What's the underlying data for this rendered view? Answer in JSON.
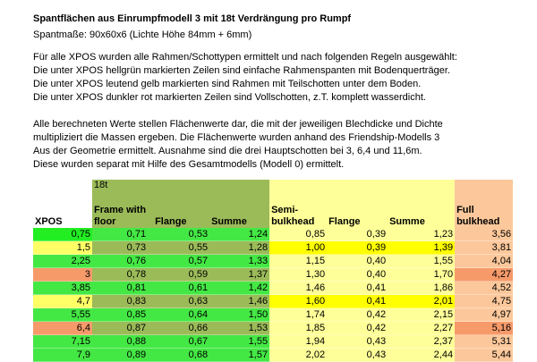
{
  "title": "Spantflächen aus Einrumpfmodell 3 mit 18t Verdrängung pro Rumpf",
  "subtitle": "Spantmaße: 90x60x6 (Lichte Höhe 84mm + 6mm)",
  "paragraph1": [
    "Für alle XPOS wurden alle Rahmen/Schottypen ermittelt und nach folgenden Regeln ausgewählt:",
    "Die unter XPOS hellgrün markierten Zeilen sind einfache Rahmenspanten mit Bodenquerträger.",
    "Die unter XPOS leutend gelb markierten sind Rahmen mit Teilschotten unter dem Boden.",
    "Die unter XPOS dunkler rot markierten Zeilen sind Vollschotten, z.T. komplett wasserdicht."
  ],
  "paragraph2": [
    "Alle berechneten Werte stellen Flächenwerte dar, die mit der jeweiligen Blechdicke und Dichte",
    "multipliziert die Massen ergeben. Die Flächenwerte wurden anhand des Friendship-Modells 3",
    "Aus der Geometrie ermittelt. Ausnahme sind die drei Hauptschotten bei 3, 6,4 und 11,6m.",
    "Diese wurden separat mit Hilfe des Gesamtmodells (Modell 0) ermittelt."
  ],
  "table": {
    "group_label": "18t",
    "headers": {
      "xpos": "XPOS",
      "frame1": "Frame with",
      "frame2": "floor",
      "flange1": "Flange",
      "summe1": "Summe",
      "semi1": "Semi-",
      "semi2": "bulkhead",
      "flange2": "Flange",
      "summe2": "Summe",
      "full1": "Full",
      "full2": "bulkhead"
    },
    "colors": {
      "green": "#44e844",
      "bright_green": "#22ee22",
      "olive": "#9bbb59",
      "yellow_light": "#ffff66",
      "salmon": "#f79a6a",
      "semi_bg": "#ffff99",
      "semi_highlight": "#ffff00",
      "full_bg": "#fcc89b",
      "full_highlight": "#f79a6a"
    },
    "rows": [
      {
        "type": "frame-first",
        "xpos": "0,75",
        "frame": "0,71",
        "flange1": "0,53",
        "summe1": "1,24",
        "semi": "0,85",
        "flange2": "0,39",
        "summe2": "1,23",
        "full": "3,56"
      },
      {
        "type": "partial",
        "xpos": "1,5",
        "frame": "0,73",
        "flange1": "0,55",
        "summe1": "1,28",
        "semi": "1,00",
        "flange2": "0,39",
        "summe2": "1,39",
        "full": "3,81"
      },
      {
        "type": "frame",
        "xpos": "2,25",
        "frame": "0,76",
        "flange1": "0,57",
        "summe1": "1,33",
        "semi": "1,15",
        "flange2": "0,40",
        "summe2": "1,55",
        "full": "4,04"
      },
      {
        "type": "full",
        "xpos": "3",
        "frame": "0,78",
        "flange1": "0,59",
        "summe1": "1,37",
        "semi": "1,30",
        "flange2": "0,40",
        "summe2": "1,70",
        "full": "4,27"
      },
      {
        "type": "frame",
        "xpos": "3,85",
        "frame": "0,81",
        "flange1": "0,61",
        "summe1": "1,42",
        "semi": "1,46",
        "flange2": "0,41",
        "summe2": "1,86",
        "full": "4,52"
      },
      {
        "type": "partial",
        "xpos": "4,7",
        "frame": "0,83",
        "flange1": "0,63",
        "summe1": "1,46",
        "semi": "1,60",
        "flange2": "0,41",
        "summe2": "2,01",
        "full": "4,75"
      },
      {
        "type": "frame",
        "xpos": "5,55",
        "frame": "0,85",
        "flange1": "0,64",
        "summe1": "1,50",
        "semi": "1,74",
        "flange2": "0,42",
        "summe2": "2,15",
        "full": "4,97"
      },
      {
        "type": "full",
        "xpos": "6,4",
        "frame": "0,87",
        "flange1": "0,66",
        "summe1": "1,53",
        "semi": "1,85",
        "flange2": "0,42",
        "summe2": "2,27",
        "full": "5,16"
      },
      {
        "type": "frame",
        "xpos": "7,15",
        "frame": "0,88",
        "flange1": "0,67",
        "summe1": "1,55",
        "semi": "1,94",
        "flange2": "0,43",
        "summe2": "2,37",
        "full": "5,31"
      },
      {
        "type": "frame",
        "xpos": "7,9",
        "frame": "0,89",
        "flange1": "0,68",
        "summe1": "1,57",
        "semi": "2,02",
        "flange2": "0,43",
        "summe2": "2,44",
        "full": "5,44"
      }
    ]
  }
}
